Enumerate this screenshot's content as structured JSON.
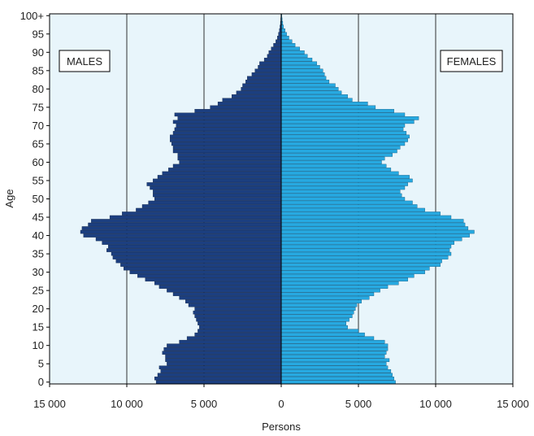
{
  "chart_data": {
    "type": "bar",
    "orientation": "horizontal-pyramid",
    "title": "",
    "xlabel": "Persons",
    "ylabel": "Age",
    "xlim": [
      -15000,
      15000
    ],
    "ylim": [
      0,
      100
    ],
    "grid": true,
    "x_ticks": [
      -15000,
      -10000,
      -5000,
      0,
      5000,
      10000,
      15000
    ],
    "x_tick_labels": [
      "15 000",
      "10 000",
      "5 000",
      "0",
      "5 000",
      "10 000",
      "15 000"
    ],
    "y_ticks": [
      0,
      5,
      10,
      15,
      20,
      25,
      30,
      35,
      40,
      45,
      50,
      55,
      60,
      65,
      70,
      75,
      80,
      85,
      90,
      95,
      100
    ],
    "y_tick_labels": [
      "0",
      "5",
      "10",
      "15",
      "20",
      "25",
      "30",
      "35",
      "40",
      "45",
      "50",
      "55",
      "60",
      "65",
      "70",
      "75",
      "80",
      "85",
      "90",
      "95",
      "100+"
    ],
    "series": [
      {
        "name": "MALES",
        "color": "#1c3f80",
        "ages": [
          0,
          1,
          2,
          3,
          4,
          5,
          6,
          7,
          8,
          9,
          10,
          11,
          12,
          13,
          14,
          15,
          16,
          17,
          18,
          19,
          20,
          21,
          22,
          23,
          24,
          25,
          26,
          27,
          28,
          29,
          30,
          31,
          32,
          33,
          34,
          35,
          36,
          37,
          38,
          39,
          40,
          41,
          42,
          43,
          44,
          45,
          46,
          47,
          48,
          49,
          50,
          51,
          52,
          53,
          54,
          55,
          56,
          57,
          58,
          59,
          60,
          61,
          62,
          63,
          64,
          65,
          66,
          67,
          68,
          69,
          70,
          71,
          72,
          73,
          74,
          75,
          76,
          77,
          78,
          79,
          80,
          81,
          82,
          83,
          84,
          85,
          86,
          87,
          88,
          89,
          90,
          91,
          92,
          93,
          94,
          95,
          96,
          97,
          98,
          99,
          100
        ],
        "values": [
          8100,
          8200,
          8000,
          7800,
          7900,
          7400,
          7500,
          7500,
          7700,
          7600,
          7400,
          6600,
          6100,
          5600,
          5400,
          5300,
          5400,
          5500,
          5600,
          5700,
          5600,
          6000,
          6200,
          6600,
          7000,
          7400,
          7900,
          8200,
          8800,
          9300,
          9800,
          10200,
          10400,
          10700,
          10900,
          11000,
          11300,
          11200,
          11600,
          12000,
          12800,
          13000,
          12900,
          12500,
          12300,
          11100,
          10300,
          9400,
          9000,
          8600,
          8200,
          8300,
          8300,
          8500,
          8700,
          8300,
          8000,
          7700,
          7300,
          7000,
          6600,
          6700,
          6700,
          7000,
          7000,
          7100,
          7200,
          7200,
          7000,
          6900,
          6800,
          7000,
          6700,
          6900,
          5600,
          4600,
          4100,
          3800,
          3200,
          2900,
          2600,
          2500,
          2300,
          2200,
          1900,
          1700,
          1500,
          1400,
          1100,
          900,
          800,
          650,
          500,
          350,
          250,
          180,
          120,
          80,
          50,
          30,
          20
        ]
      },
      {
        "name": "FEMALES",
        "color": "#27a9e1",
        "ages": [
          0,
          1,
          2,
          3,
          4,
          5,
          6,
          7,
          8,
          9,
          10,
          11,
          12,
          13,
          14,
          15,
          16,
          17,
          18,
          19,
          20,
          21,
          22,
          23,
          24,
          25,
          26,
          27,
          28,
          29,
          30,
          31,
          32,
          33,
          34,
          35,
          36,
          37,
          38,
          39,
          40,
          41,
          42,
          43,
          44,
          45,
          46,
          47,
          48,
          49,
          50,
          51,
          52,
          53,
          54,
          55,
          56,
          57,
          58,
          59,
          60,
          61,
          62,
          63,
          64,
          65,
          66,
          67,
          68,
          69,
          70,
          71,
          72,
          73,
          74,
          75,
          76,
          77,
          78,
          79,
          80,
          81,
          82,
          83,
          84,
          85,
          86,
          87,
          88,
          89,
          90,
          91,
          92,
          93,
          94,
          95,
          96,
          97,
          98,
          99,
          100
        ],
        "values": [
          7400,
          7300,
          7200,
          7100,
          6900,
          6800,
          7000,
          6700,
          6800,
          6900,
          6900,
          6700,
          6000,
          5400,
          5000,
          4300,
          4200,
          4400,
          4600,
          4700,
          4800,
          4900,
          5200,
          5700,
          6000,
          6400,
          6900,
          7600,
          8200,
          8600,
          9300,
          9600,
          10300,
          10400,
          10800,
          11000,
          10900,
          11000,
          11200,
          11700,
          12200,
          12500,
          12100,
          11900,
          11800,
          11000,
          10300,
          9300,
          8800,
          8500,
          8000,
          7800,
          7700,
          8000,
          8200,
          8500,
          8300,
          7600,
          7100,
          6800,
          6500,
          6700,
          7200,
          7500,
          7700,
          8000,
          8200,
          8300,
          8100,
          7900,
          8000,
          8600,
          8900,
          8000,
          7300,
          6100,
          5600,
          4600,
          4300,
          3900,
          3700,
          3500,
          3100,
          2900,
          2800,
          2700,
          2500,
          2300,
          2000,
          1700,
          1500,
          1200,
          900,
          700,
          500,
          350,
          250,
          150,
          100,
          60,
          40
        ]
      }
    ],
    "legend": [
      {
        "label": "MALES",
        "placement": "top-left"
      },
      {
        "label": "FEMALES",
        "placement": "top-right"
      }
    ],
    "colors": {
      "plot_background": "#e8f5fb",
      "grid_line": "#000000",
      "male_bar": "#1c3f80",
      "female_bar": "#27a9e1"
    }
  }
}
